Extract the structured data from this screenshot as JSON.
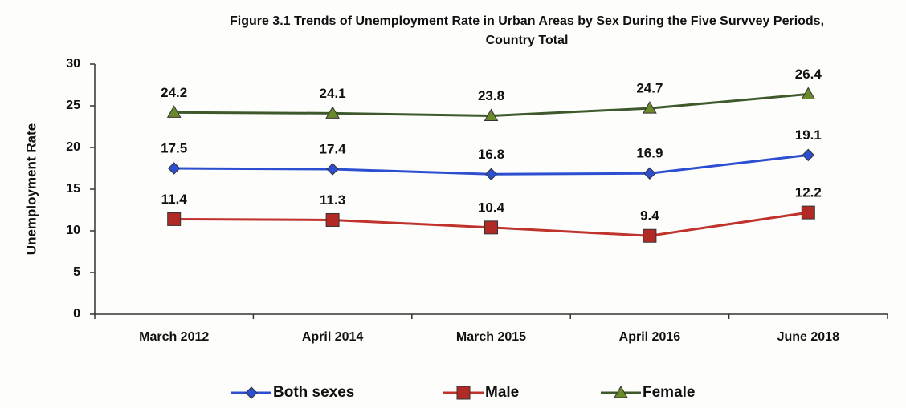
{
  "chart_data": {
    "type": "line",
    "title": [
      "Figure 3.1 Trends of Unemployment Rate  in Urban Areas by Sex During the Five Survvey Periods,",
      "Country Total"
    ],
    "y_label": "Unemployment Rate",
    "categories": [
      "March  2012",
      "April 2014",
      "March 2015",
      "April 2016",
      "June 2018"
    ],
    "series": [
      {
        "name": "Both sexes",
        "color": "#2c4fd1",
        "marker": "diamond",
        "values": [
          17.5,
          17.4,
          16.8,
          16.9,
          19.1
        ]
      },
      {
        "name": "Male",
        "color": "#c0322c",
        "marker": "square",
        "values": [
          11.4,
          11.3,
          10.4,
          9.4,
          12.2
        ]
      },
      {
        "name": "Female",
        "color": "#3e5a2c",
        "marker": "triangle",
        "values": [
          24.2,
          24.1,
          23.8,
          24.7,
          26.4
        ]
      }
    ],
    "ylim": [
      0,
      30
    ],
    "yticks": [
      0,
      5,
      10,
      15,
      20,
      25,
      30
    ],
    "grid": false,
    "legend": "bottom"
  }
}
